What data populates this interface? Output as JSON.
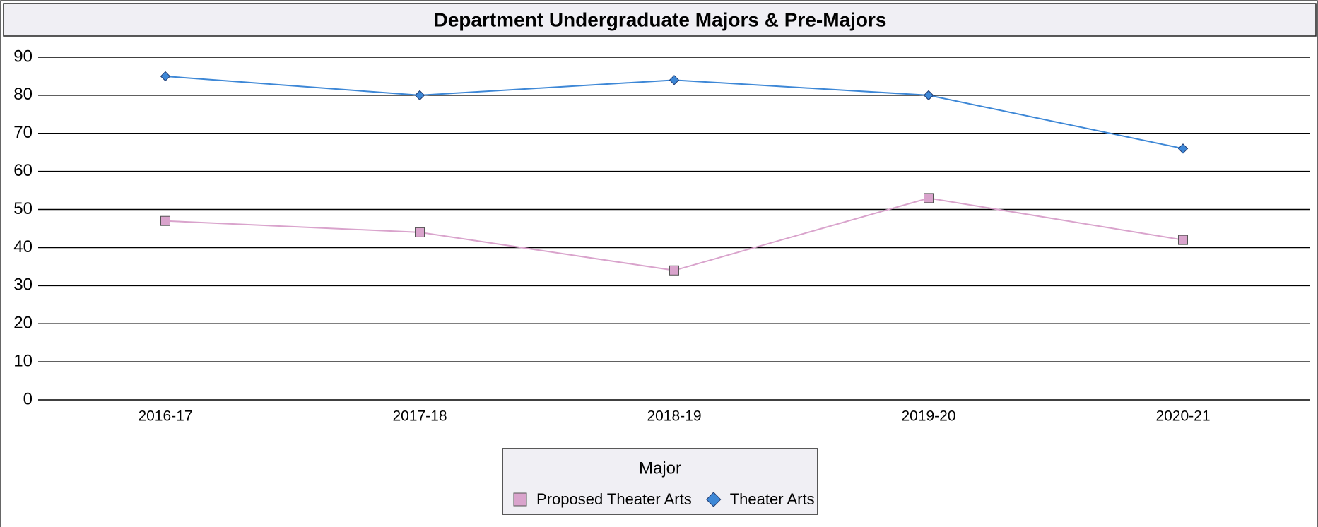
{
  "chart_data": {
    "type": "line",
    "title": "Department Undergraduate Majors & Pre-Majors",
    "categories": [
      "2016-17",
      "2017-18",
      "2018-19",
      "2019-20",
      "2020-21"
    ],
    "series": [
      {
        "name": "Proposed Theater Arts",
        "color": "#d9a3cc",
        "marker": "square",
        "values": [
          47,
          44,
          34,
          53,
          42
        ]
      },
      {
        "name": "Theater Arts",
        "color": "#3d87d6",
        "marker": "diamond",
        "values": [
          85,
          80,
          84,
          80,
          66
        ]
      }
    ],
    "ylim": [
      0,
      90
    ],
    "yticks": [
      0,
      10,
      20,
      30,
      40,
      50,
      60,
      70,
      80,
      90
    ],
    "grid": true,
    "legend": {
      "title": "Major",
      "position": "bottom"
    }
  }
}
